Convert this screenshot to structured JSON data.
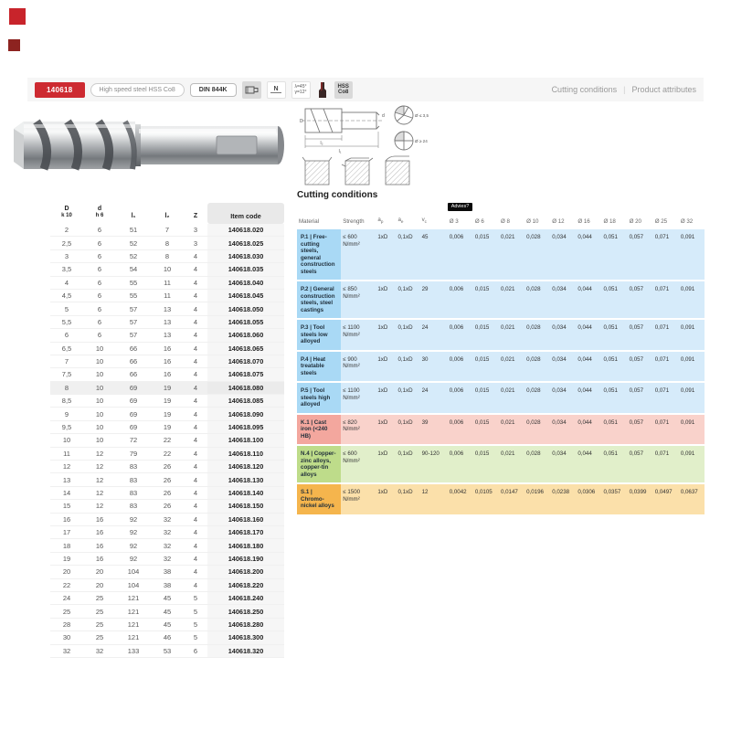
{
  "header": {
    "item_code": "140618",
    "material_label": "High speed steel HSS Co8",
    "standard_label": "DIN 844K",
    "tolerance_label": "N",
    "angles_line1": "λ=45°",
    "angles_line2": "γ=12°",
    "material_badge_line1": "HSS",
    "material_badge_line2": "Co8",
    "link_cutting": "Cutting conditions",
    "link_attributes": "Product attributes",
    "links_separator": "|",
    "icons": {
      "shank_profile_icon": "shank-profile-icon",
      "end_mill_silhouette_icon": "end-mill-silhouette-icon"
    },
    "accent_color": "#cd2a31"
  },
  "drawing": {
    "dim_l1": "l₁",
    "dim_l2": "l₂",
    "dim_d": "d",
    "dim_D": "D",
    "small_section": "Ø ≤ 3,5",
    "large_section": "Ø ≥ 24"
  },
  "dimension_table": {
    "headers": {
      "d1_line1": "D",
      "d1_line2": "k 10",
      "d2_line1": "d",
      "d2_line2": "h 6",
      "l1": "l₁",
      "l2": "l₂",
      "z": "Z",
      "item": "Item code"
    },
    "highlighted_row_index": 12,
    "rows": [
      [
        "2",
        "6",
        "51",
        "7",
        "3",
        "140618.020"
      ],
      [
        "2,5",
        "6",
        "52",
        "8",
        "3",
        "140618.025"
      ],
      [
        "3",
        "6",
        "52",
        "8",
        "4",
        "140618.030"
      ],
      [
        "3,5",
        "6",
        "54",
        "10",
        "4",
        "140618.035"
      ],
      [
        "4",
        "6",
        "55",
        "11",
        "4",
        "140618.040"
      ],
      [
        "4,5",
        "6",
        "55",
        "11",
        "4",
        "140618.045"
      ],
      [
        "5",
        "6",
        "57",
        "13",
        "4",
        "140618.050"
      ],
      [
        "5,5",
        "6",
        "57",
        "13",
        "4",
        "140618.055"
      ],
      [
        "6",
        "6",
        "57",
        "13",
        "4",
        "140618.060"
      ],
      [
        "6,5",
        "10",
        "66",
        "16",
        "4",
        "140618.065"
      ],
      [
        "7",
        "10",
        "66",
        "16",
        "4",
        "140618.070"
      ],
      [
        "7,5",
        "10",
        "66",
        "16",
        "4",
        "140618.075"
      ],
      [
        "8",
        "10",
        "69",
        "19",
        "4",
        "140618.080"
      ],
      [
        "8,5",
        "10",
        "69",
        "19",
        "4",
        "140618.085"
      ],
      [
        "9",
        "10",
        "69",
        "19",
        "4",
        "140618.090"
      ],
      [
        "9,5",
        "10",
        "69",
        "19",
        "4",
        "140618.095"
      ],
      [
        "10",
        "10",
        "72",
        "22",
        "4",
        "140618.100"
      ],
      [
        "11",
        "12",
        "79",
        "22",
        "4",
        "140618.110"
      ],
      [
        "12",
        "12",
        "83",
        "26",
        "4",
        "140618.120"
      ],
      [
        "13",
        "12",
        "83",
        "26",
        "4",
        "140618.130"
      ],
      [
        "14",
        "12",
        "83",
        "26",
        "4",
        "140618.140"
      ],
      [
        "15",
        "12",
        "83",
        "26",
        "4",
        "140618.150"
      ],
      [
        "16",
        "16",
        "92",
        "32",
        "4",
        "140618.160"
      ],
      [
        "17",
        "16",
        "92",
        "32",
        "4",
        "140618.170"
      ],
      [
        "18",
        "16",
        "92",
        "32",
        "4",
        "140618.180"
      ],
      [
        "19",
        "16",
        "92",
        "32",
        "4",
        "140618.190"
      ],
      [
        "20",
        "20",
        "104",
        "38",
        "4",
        "140618.200"
      ],
      [
        "22",
        "20",
        "104",
        "38",
        "4",
        "140618.220"
      ],
      [
        "24",
        "25",
        "121",
        "45",
        "5",
        "140618.240"
      ],
      [
        "25",
        "25",
        "121",
        "45",
        "5",
        "140618.250"
      ],
      [
        "28",
        "25",
        "121",
        "45",
        "5",
        "140618.280"
      ],
      [
        "30",
        "25",
        "121",
        "46",
        "5",
        "140618.300"
      ],
      [
        "32",
        "32",
        "133",
        "53",
        "6",
        "140618.320"
      ]
    ]
  },
  "cutting_conditions": {
    "title": "Cutting conditions",
    "columns": [
      {
        "label": "Material"
      },
      {
        "label": "Strength"
      },
      {
        "label": "a",
        "sub": "p"
      },
      {
        "label": "a",
        "sub": "e"
      },
      {
        "label": "v",
        "sub": "c"
      },
      {
        "label": "Ø 3",
        "tooltip": "Advies?"
      },
      {
        "label": "Ø 6"
      },
      {
        "label": "Ø 8"
      },
      {
        "label": "Ø 10"
      },
      {
        "label": "Ø 12"
      },
      {
        "label": "Ø 16"
      },
      {
        "label": "Ø 18"
      },
      {
        "label": "Ø 20"
      },
      {
        "label": "Ø 25"
      },
      {
        "label": "Ø 32"
      }
    ],
    "rows": [
      {
        "theme": "blue",
        "material": "P.1 | Free-cutting steels, general construction steels",
        "strength": "≤ 600 N/mm²",
        "ap": "1xD",
        "ae": "0,1xD",
        "vc": "45",
        "feed": [
          "0,006",
          "0,015",
          "0,021",
          "0,028",
          "0,034",
          "0,044",
          "0,051",
          "0,057",
          "0,071",
          "0,091"
        ]
      },
      {
        "theme": "blue",
        "material": "P.2 | General construction steels, steel castings",
        "strength": "≤ 850 N/mm²",
        "ap": "1xD",
        "ae": "0,1xD",
        "vc": "29",
        "feed": [
          "0,006",
          "0,015",
          "0,021",
          "0,028",
          "0,034",
          "0,044",
          "0,051",
          "0,057",
          "0,071",
          "0,091"
        ]
      },
      {
        "theme": "blue",
        "material": "P.3 | Tool steels low alloyed",
        "strength": "≤ 1100 N/mm²",
        "ap": "1xD",
        "ae": "0,1xD",
        "vc": "24",
        "feed": [
          "0,006",
          "0,015",
          "0,021",
          "0,028",
          "0,034",
          "0,044",
          "0,051",
          "0,057",
          "0,071",
          "0,091"
        ]
      },
      {
        "theme": "blue",
        "material": "P.4 | Heat treatable steels",
        "strength": "≤ 900 N/mm²",
        "ap": "1xD",
        "ae": "0,1xD",
        "vc": "30",
        "feed": [
          "0,006",
          "0,015",
          "0,021",
          "0,028",
          "0,034",
          "0,044",
          "0,051",
          "0,057",
          "0,071",
          "0,091"
        ]
      },
      {
        "theme": "blue",
        "material": "P.5 | Tool steels high alloyed",
        "strength": "≤ 1100 N/mm²",
        "ap": "1xD",
        "ae": "0,1xD",
        "vc": "24",
        "feed": [
          "0,006",
          "0,015",
          "0,021",
          "0,028",
          "0,034",
          "0,044",
          "0,051",
          "0,057",
          "0,071",
          "0,091"
        ]
      },
      {
        "theme": "red",
        "material": "K.1 | Cast iron (<240 HB)",
        "strength": "≤ 820 N/mm²",
        "ap": "1xD",
        "ae": "0,1xD",
        "vc": "39",
        "feed": [
          "0,006",
          "0,015",
          "0,021",
          "0,028",
          "0,034",
          "0,044",
          "0,051",
          "0,057",
          "0,071",
          "0,091"
        ]
      },
      {
        "theme": "green",
        "material": "N.4 | Copper-zinc alloys, copper-tin alloys",
        "strength": "≤ 600 N/mm²",
        "ap": "1xD",
        "ae": "0,1xD",
        "vc": "90-120",
        "feed": [
          "0,006",
          "0,015",
          "0,021",
          "0,028",
          "0,034",
          "0,044",
          "0,051",
          "0,057",
          "0,071",
          "0,091"
        ]
      },
      {
        "theme": "orange",
        "material": "S.1 | Chromo-nickel alloys",
        "strength": "≤ 1500 N/mm²",
        "ap": "1xD",
        "ae": "0,1xD",
        "vc": "12",
        "feed": [
          "0,0042",
          "0,0105",
          "0,0147",
          "0,0196",
          "0,0238",
          "0,0306",
          "0,0357",
          "0,0399",
          "0,0497",
          "0,0637"
        ]
      }
    ]
  }
}
